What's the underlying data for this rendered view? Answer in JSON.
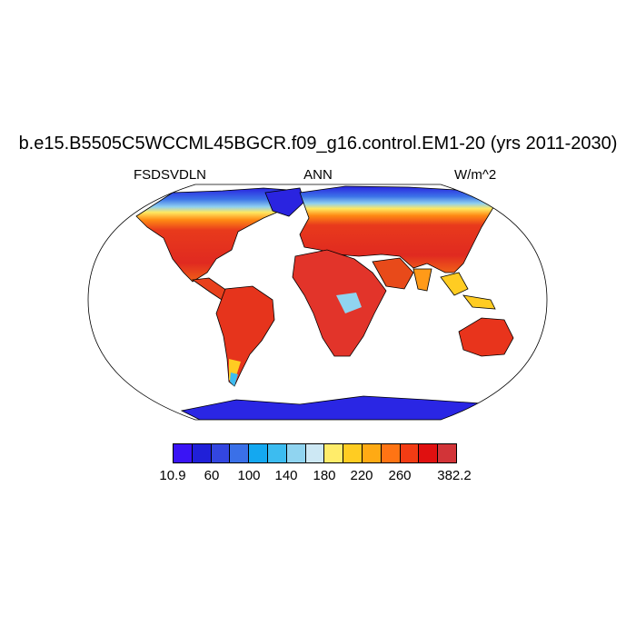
{
  "title": "b.e15.B5505C5WCCML45BGCR.f09_g16.control.EM1-20 (yrs 2011-2030)",
  "left_label": "FSDSVDLN",
  "center_label": "ANN",
  "right_label": "W/m^2",
  "colorbar": {
    "colors": [
      "#3a14f5",
      "#2020d8",
      "#3346e0",
      "#3a70e8",
      "#14a8f0",
      "#3cbcf0",
      "#90d4f0",
      "#cde8f4",
      "#ffec6a",
      "#ffcc22",
      "#ffaa14",
      "#ff7414",
      "#f23c14",
      "#e01010",
      "#d23438"
    ],
    "labels": [
      "10.9",
      "60",
      "100",
      "140",
      "180",
      "220",
      "260",
      "382.2"
    ]
  }
}
